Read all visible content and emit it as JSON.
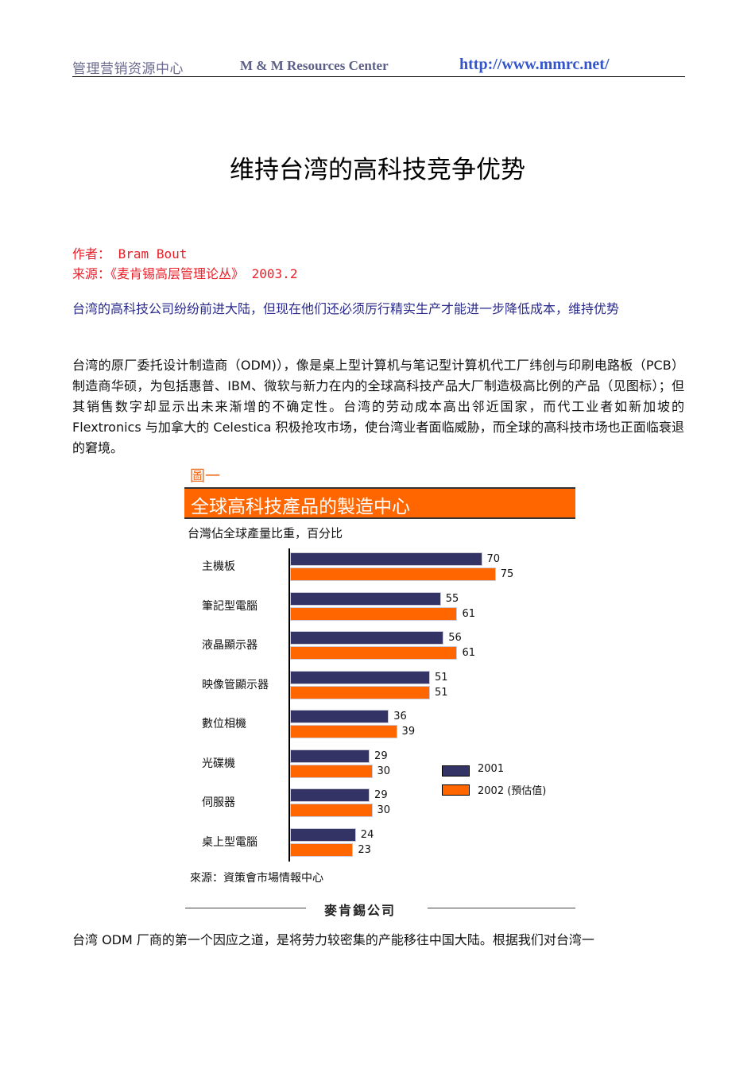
{
  "header": {
    "org_cn": "管理营销资源中心",
    "org_en": "M & M Resources Center",
    "url": "http://www.mmrc.net/"
  },
  "article": {
    "title": "维持台湾的高科技竞争优势",
    "author_label": "作者：",
    "author": " Bram Bout",
    "source_label": "来源：",
    "source": "《麦肯锡高层管理论丛》 2003.2",
    "lead": "台湾的高科技公司纷纷前进大陆，但现在他们还必须厉行精实生产才能进一步降低成本，维持优势",
    "paragraph1": "台湾的原厂委托设计制造商（ODM)），像是桌上型计算机与笔记型计算机代工厂纬创与印刷电路板（PCB）制造商华硕，为包括惠普、IBM、微软与新力在内的全球高科技产品大厂制造极高比例的产品（见图标）；但其销售数字却显示出未来渐增的不确定性。台湾的劳动成本高出邻近国家，而代工业者如新加坡的 Flextronics 与加拿大的 Celestica 积极抢攻市场，使台湾业者面临威胁，而全球的高科技市场也正面临衰退的窘境。",
    "paragraph2": "台湾 ODM 厂商的第一个因应之道，是将劳力较密集的产能移往中国大陆。根据我们对台湾一"
  },
  "figure": {
    "label": "圖一",
    "banner": "全球高科技產品的製造中心",
    "subtitle": "台灣佔全球產量比重，百分比",
    "source": "來源：資策會市場情報中心",
    "footer_brand": "麥肯錫公司",
    "colors": {
      "y2001": "#333366",
      "y2002": "#ff6600",
      "banner": "#ff6600"
    }
  },
  "chart_data": {
    "type": "bar",
    "orientation": "horizontal",
    "title": "全球高科技產品的製造中心",
    "subtitle": "台灣佔全球產量比重，百分比",
    "categories": [
      "主機板",
      "筆記型電腦",
      "液晶顯示器",
      "映像管顯示器",
      "數位相機",
      "光碟機",
      "伺服器",
      "桌上型電腦"
    ],
    "series": [
      {
        "name": "2001",
        "values": [
          70,
          55,
          56,
          51,
          36,
          29,
          29,
          24
        ]
      },
      {
        "name": "2002 (預估值)",
        "values": [
          75,
          61,
          61,
          51,
          39,
          30,
          30,
          23
        ]
      }
    ],
    "xlabel": "",
    "ylabel": "",
    "xlim": [
      0,
      80
    ],
    "grid": false,
    "legend_position": "right",
    "data_labels": true,
    "source": "來源：資策會市場情報中心"
  }
}
